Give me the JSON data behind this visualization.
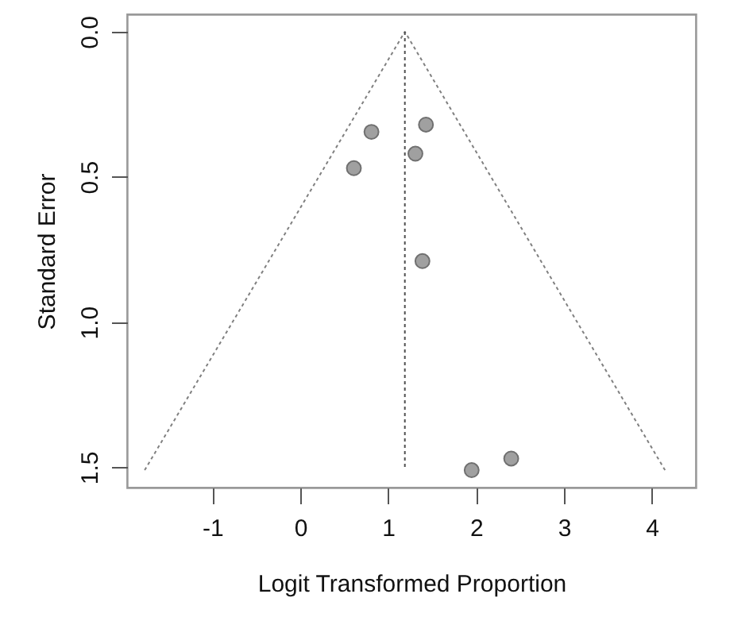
{
  "chart_data": {
    "type": "scatter",
    "xlabel": "Logit Transformed Proportion",
    "ylabel": "Standard Error",
    "xlim": [
      -1.97,
      4.5
    ],
    "ylim": [
      1.57,
      -0.06
    ],
    "xticks": [
      -1,
      0,
      1,
      2,
      3,
      4
    ],
    "yticks": [
      {
        "value": 0,
        "label": "0.0"
      },
      {
        "value": 0.5,
        "label": "0.5"
      },
      {
        "value": 1,
        "label": "1.0"
      },
      {
        "value": 1.5,
        "label": "1.5"
      }
    ],
    "grid": false,
    "marker": "circle",
    "series": [
      {
        "type": "line",
        "color": "#808080",
        "line_style": "dotted",
        "marker": "none",
        "x": [
          -1.77,
          1.19,
          4.15
        ],
        "values": [
          1.51,
          0,
          1.51
        ]
      },
      {
        "type": "line",
        "color": "#505050",
        "line_style": "dotted",
        "marker": "none",
        "x": [
          1.19,
          1.19
        ],
        "values": [
          0,
          1.51
        ]
      },
      {
        "type": "scatter",
        "color": "#a0a0a0",
        "x": [
          0.81,
          1.43,
          0.61,
          1.31,
          1.39,
          1.95,
          2.4
        ],
        "values": [
          0.345,
          0.32,
          0.47,
          0.42,
          0.79,
          1.51,
          1.47
        ]
      }
    ]
  }
}
